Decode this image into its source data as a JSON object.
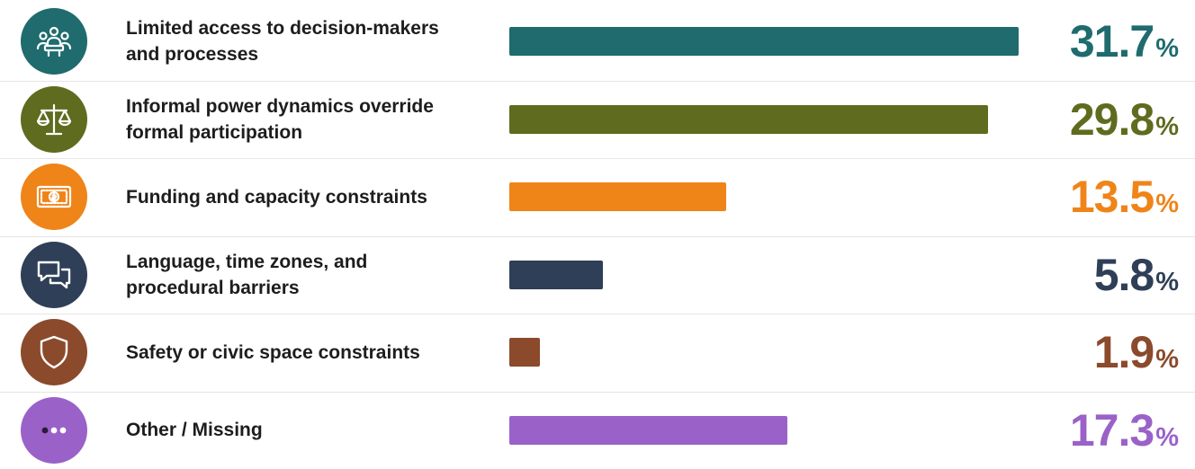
{
  "chart_data": {
    "type": "bar",
    "orientation": "horizontal",
    "categories": [
      "Limited access to decision-makers and processes",
      "Informal power dynamics override formal participation",
      "Funding and capacity constraints",
      "Language, time zones, and procedural barriers",
      "Safety or civic space constraints",
      "Other / Missing"
    ],
    "values": [
      31.7,
      29.8,
      13.5,
      5.8,
      1.9,
      17.3
    ],
    "value_labels": [
      "31.7",
      "29.8",
      "13.5",
      "5.8",
      "1.9",
      "17.3"
    ],
    "unit": "%",
    "colors": [
      "#1f6b6e",
      "#5f6b1e",
      "#ef8419",
      "#2e3f57",
      "#8b4a2b",
      "#9a62c8"
    ],
    "icons": [
      "people-meeting-icon",
      "scales-icon",
      "money-icon",
      "chat-bubbles-icon",
      "shield-icon",
      "ellipsis-icon"
    ],
    "grid": false,
    "legend": "none"
  }
}
